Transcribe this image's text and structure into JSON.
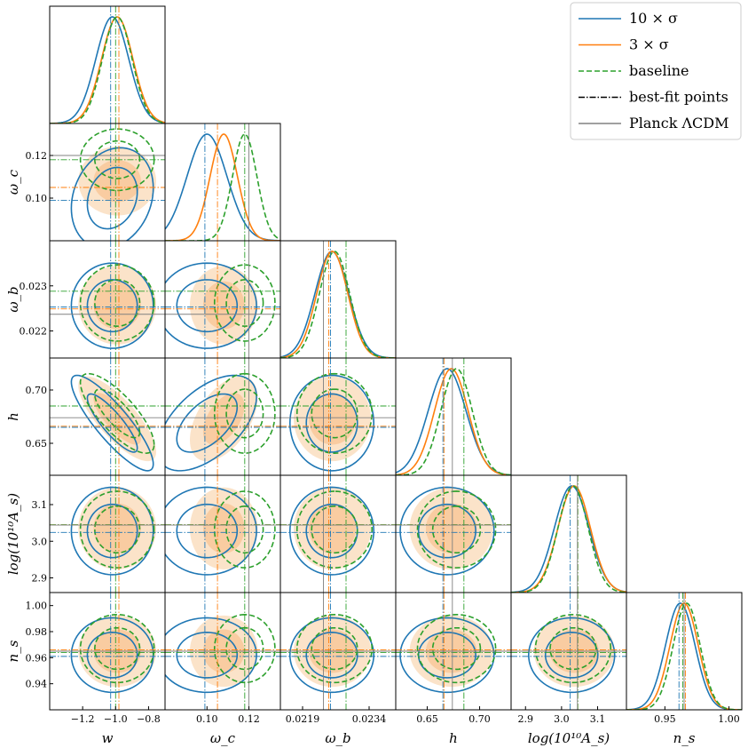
{
  "colors": {
    "series_10sigma": "#1f77b4",
    "series_3sigma": "#ff7f0e",
    "series_baseline": "#2ca02c",
    "planck": "#808080",
    "fill_3sigma": "#fbe3c9"
  },
  "chart_data": {
    "type": "corner",
    "parameters": [
      {
        "key": "w",
        "label": "w",
        "range": [
          -1.4,
          -0.7
        ],
        "ticks": [
          -1.2,
          -1.0,
          -0.8
        ],
        "tick_labels": [
          "−1.2",
          "−1.0",
          "−0.8"
        ]
      },
      {
        "key": "omega_c",
        "label": "ω_c",
        "range": [
          0.08,
          0.135
        ],
        "ticks": [
          0.1,
          0.12
        ],
        "tick_labels": [
          "0.10",
          "0.12"
        ]
      },
      {
        "key": "omega_b",
        "label": "ω_b",
        "range": [
          0.0214,
          0.024
        ],
        "ticks": [
          0.0219,
          0.0234
        ],
        "tick_labels": [
          "0.0219",
          "0.0234"
        ],
        "y_ticks": [
          0.022,
          0.023
        ],
        "y_tick_labels": [
          "0.022",
          "0.023"
        ]
      },
      {
        "key": "h",
        "label": "h",
        "range": [
          0.62,
          0.73
        ],
        "ticks": [
          0.65,
          0.7
        ],
        "tick_labels": [
          "0.65",
          "0.70"
        ],
        "y_ticks": [
          0.65,
          0.7
        ],
        "y_tick_labels": [
          "0.65",
          "0.70"
        ]
      },
      {
        "key": "logA",
        "label": "log(10¹⁰A_s)",
        "range": [
          2.86,
          3.18
        ],
        "ticks": [
          2.9,
          3.0,
          3.1
        ],
        "tick_labels": [
          "2.9",
          "3.0",
          "3.1"
        ],
        "y_ticks": [
          2.9,
          3.0,
          3.1
        ],
        "y_tick_labels": [
          "2.9",
          "3.0",
          "3.1"
        ]
      },
      {
        "key": "n_s",
        "label": "n_s",
        "range": [
          0.92,
          1.01
        ],
        "ticks": [
          0.95,
          1.0
        ],
        "tick_labels": [
          "0.95",
          "1.00"
        ],
        "y_ticks": [
          0.94,
          0.96,
          0.98,
          1.0
        ],
        "y_tick_labels": [
          "0.94",
          "0.96",
          "0.98",
          "1.00"
        ]
      }
    ],
    "w_y_ticks": [
      0.1,
      0.12
    ],
    "w_y_tick_labels": [
      "0.10",
      "0.12"
    ],
    "series": [
      {
        "name": "10 × σ",
        "style": "solid",
        "color": "#1f77b4",
        "filled": false,
        "mean": [
          -1.02,
          0.1,
          0.02256,
          0.669,
          3.028,
          0.962
        ],
        "sd": [
          0.1,
          0.0095,
          0.00038,
          0.018,
          0.048,
          0.0115
        ],
        "bestfit": [
          -1.03,
          0.099,
          0.02253,
          0.665,
          3.024,
          0.961
        ],
        "corr": {
          "0-3": -0.86,
          "1-3": 0.55,
          "0-1": 0.2
        }
      },
      {
        "name": "3 × σ",
        "style": "solid",
        "color": "#ff7f0e",
        "filled": true,
        "mean": [
          -0.99,
          0.108,
          0.02257,
          0.673,
          3.035,
          0.965
        ],
        "sd": [
          0.095,
          0.0065,
          0.00035,
          0.016,
          0.045,
          0.011
        ],
        "bestfit": [
          -0.98,
          0.105,
          0.02249,
          0.666,
          3.045,
          0.966
        ],
        "corr": {
          "0-3": -0.78,
          "1-3": 0.5
        }
      },
      {
        "name": "baseline",
        "style": "dashed",
        "color": "#2ca02c",
        "filled": false,
        "mean": [
          -0.99,
          0.118,
          0.02262,
          0.678,
          3.032,
          0.967
        ],
        "sd": [
          0.09,
          0.0058,
          0.00034,
          0.015,
          0.042,
          0.0105
        ],
        "bestfit": [
          -1.0,
          0.118,
          0.02288,
          0.685,
          3.045,
          0.964
        ],
        "corr": {
          "0-3": -0.78
        }
      }
    ],
    "planck": [
      null,
      0.12,
      0.02237,
      0.674,
      3.044,
      0.965
    ],
    "legend": {
      "placement": "top-right",
      "entries": [
        {
          "label": "10 × σ",
          "style": "solid",
          "color": "#1f77b4"
        },
        {
          "label": "3 × σ",
          "style": "solid",
          "color": "#ff7f0e"
        },
        {
          "label": "baseline",
          "style": "dashed",
          "color": "#2ca02c"
        },
        {
          "label": "best-fit points",
          "style": "dashdot",
          "color": "#000000"
        },
        {
          "label": "Planck ΛCDM",
          "style": "solid",
          "color": "#808080"
        }
      ]
    }
  }
}
